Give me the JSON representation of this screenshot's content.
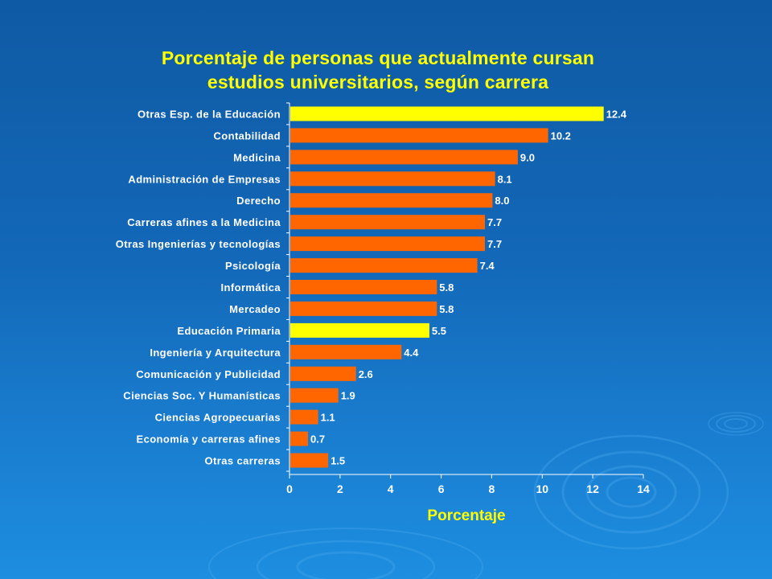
{
  "slide": {
    "title_line1": "Porcentaje de personas que actualmente cursan",
    "title_line2": "estudios universitarios, según carrera"
  },
  "colors": {
    "highlight": "#ffff00",
    "bar": "#ff6600",
    "text": "#ffffff",
    "title": "#ffff00",
    "axis": "#ffffff"
  },
  "chart_data": {
    "type": "bar",
    "orientation": "horizontal",
    "title": "Porcentaje de personas que actualmente cursan estudios universitarios, según carrera",
    "xlabel": "Porcentaje",
    "ylabel": "",
    "xlim": [
      0,
      14
    ],
    "x_ticks": [
      0,
      2,
      4,
      6,
      8,
      10,
      12,
      14
    ],
    "grid": false,
    "categories": [
      "Otras Esp. de la Educación",
      "Contabilidad",
      "Medicina",
      "Administración de Empresas",
      "Derecho",
      "Carreras afines a la Medicina",
      "Otras Ingenierías y tecnologías",
      "Psicología",
      "Informática",
      "Mercadeo",
      "Educación Primaria",
      "Ingeniería y Arquitectura",
      "Comunicación y Publicidad",
      "Ciencias Soc. Y Humanísticas",
      "Ciencias Agropecuarias",
      "Economía y carreras afines",
      "Otras carreras"
    ],
    "values": [
      12.4,
      10.2,
      9.0,
      8.1,
      8.0,
      7.7,
      7.7,
      7.4,
      5.8,
      5.8,
      5.5,
      4.4,
      2.6,
      1.9,
      1.1,
      0.7,
      1.5
    ],
    "value_labels": [
      "12.4",
      "10.2",
      "9.0",
      "8.1",
      "8.0",
      "7.7",
      "7.7",
      "7.4",
      "5.8",
      "5.8",
      "5.5",
      "4.4",
      "2.6",
      "1.9",
      "1.1",
      "0.7",
      "1.5"
    ],
    "highlighted": [
      true,
      false,
      false,
      false,
      false,
      false,
      false,
      false,
      false,
      false,
      true,
      false,
      false,
      false,
      false,
      false,
      false
    ]
  }
}
